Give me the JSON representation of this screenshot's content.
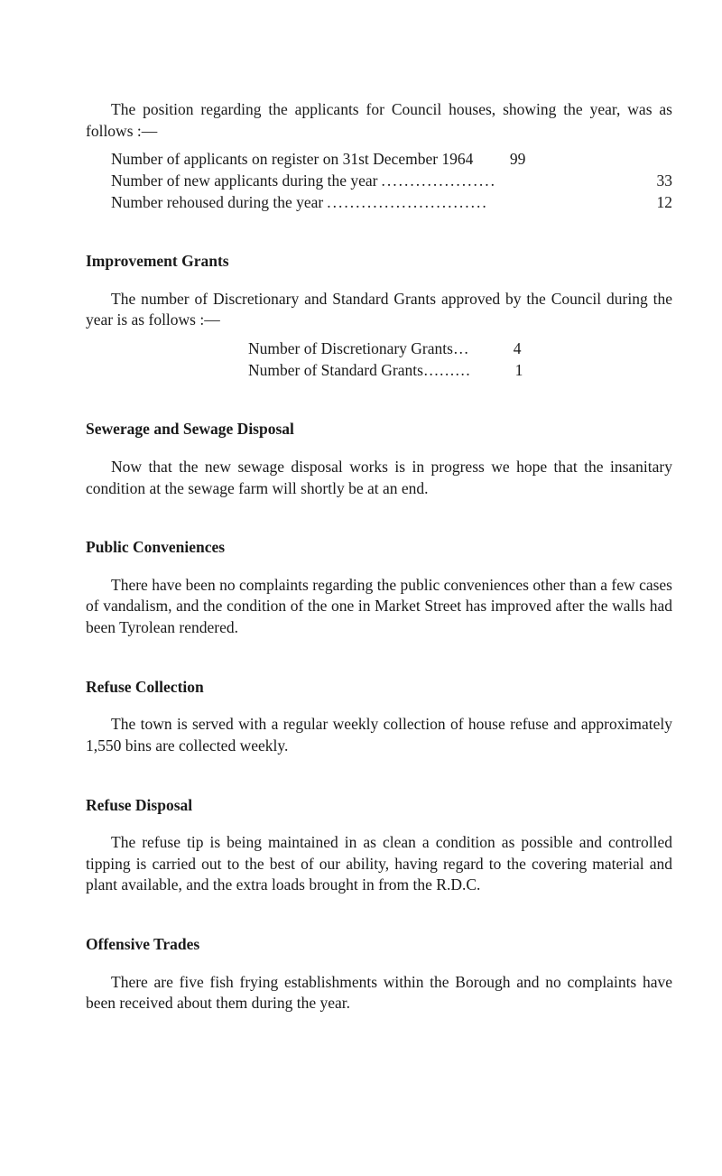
{
  "intro": {
    "para": "The position regarding the applicants for Council houses, showing the year, was as follows :—",
    "rows": [
      {
        "label": "Number of applicants on register on 31st December 1964",
        "value": "99"
      },
      {
        "label": "Number of new applicants during the year",
        "value": "33"
      },
      {
        "label": "Number rehoused during the year",
        "value": "12"
      }
    ]
  },
  "improvement": {
    "heading": "Improvement Grants",
    "para": "The number of Discretionary and Standard Grants approved by the Council during the year is as follows :—",
    "rows": [
      {
        "label": "Number of Discretionary Grants",
        "dots": "…",
        "value": "4"
      },
      {
        "label": "Number of Standard Grants",
        "dots": "………",
        "value": "1"
      }
    ]
  },
  "sewerage": {
    "heading": "Sewerage and Sewage Disposal",
    "para": "Now that the new sewage disposal works is in progress we hope that the insanitary condition at the sewage farm will shortly be at an end."
  },
  "conveniences": {
    "heading": "Public Conveniences",
    "para": "There have been no complaints regarding the public conveniences other than a few cases of vandalism, and the condition of the one in Market Street has improved after the walls had been Tyrolean rendered."
  },
  "collection": {
    "heading": "Refuse Collection",
    "para": "The town is served with a regular weekly collection of house refuse and approximately 1,550 bins are collected weekly."
  },
  "disposal": {
    "heading": "Refuse Disposal",
    "para": "The refuse tip is being maintained in as clean a condition as possible and controlled tipping is carried out to the best of our ability, having regard to the covering material and plant available, and the extra loads brought in from the R.D.C."
  },
  "offensive": {
    "heading": "Offensive Trades",
    "para": "There are five fish frying establishments within the Borough and no complaints have been received about them during the year."
  }
}
